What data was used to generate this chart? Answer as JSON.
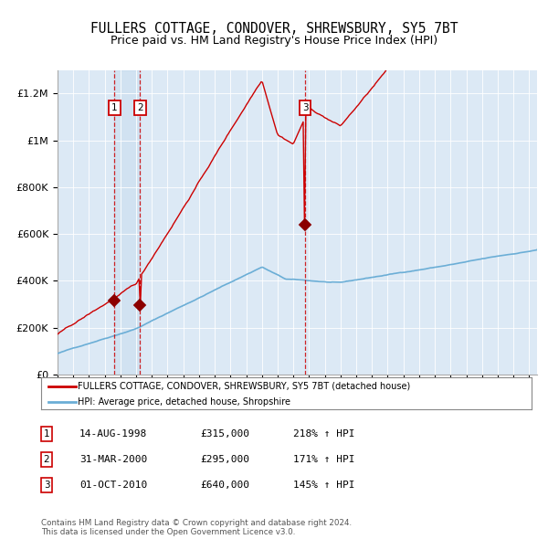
{
  "title": "FULLERS COTTAGE, CONDOVER, SHREWSBURY, SY5 7BT",
  "subtitle": "Price paid vs. HM Land Registry's House Price Index (HPI)",
  "title_fontsize": 10.5,
  "subtitle_fontsize": 9,
  "sale_dates": [
    1998.62,
    2000.25,
    2010.75
  ],
  "sale_prices": [
    315000,
    295000,
    640000
  ],
  "sale_labels": [
    "1",
    "2",
    "3"
  ],
  "hpi_color": "#6baed6",
  "price_color": "#cc0000",
  "marker_color": "#8b0000",
  "background_color": "#dce9f5",
  "legend_entries": [
    "FULLERS COTTAGE, CONDOVER, SHREWSBURY, SY5 7BT (detached house)",
    "HPI: Average price, detached house, Shropshire"
  ],
  "table_data": [
    [
      "1",
      "14-AUG-1998",
      "£315,000",
      "218% ↑ HPI"
    ],
    [
      "2",
      "31-MAR-2000",
      "£295,000",
      "171% ↑ HPI"
    ],
    [
      "3",
      "01-OCT-2010",
      "£640,000",
      "145% ↑ HPI"
    ]
  ],
  "footer": "Contains HM Land Registry data © Crown copyright and database right 2024.\nThis data is licensed under the Open Government Licence v3.0.",
  "ylim": [
    0,
    1300000
  ],
  "yticks": [
    0,
    200000,
    400000,
    600000,
    800000,
    1000000,
    1200000
  ],
  "ytick_labels": [
    "£0",
    "£200K",
    "£400K",
    "£600K",
    "£800K",
    "£1M",
    "£1.2M"
  ],
  "xlim_start": 1995.0,
  "xlim_end": 2025.5,
  "xticks": [
    1995,
    1996,
    1997,
    1998,
    1999,
    2000,
    2001,
    2002,
    2003,
    2004,
    2005,
    2006,
    2007,
    2008,
    2009,
    2010,
    2011,
    2012,
    2013,
    2014,
    2015,
    2016,
    2017,
    2018,
    2019,
    2020,
    2021,
    2022,
    2023,
    2024,
    2025
  ]
}
